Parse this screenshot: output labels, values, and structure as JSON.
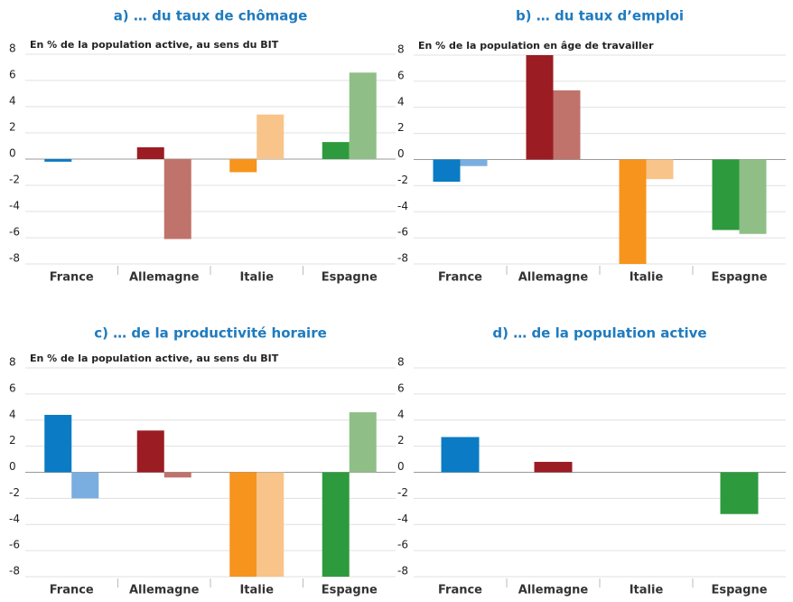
{
  "chart_data": [
    {
      "type": "bar",
      "title": "a) … du taux de chômage",
      "subtitle": "En % de la population active, au sens du BIT",
      "categories": [
        "France",
        "Allemagne",
        "Italie",
        "Espagne"
      ],
      "series": [
        {
          "colors": [
            "#0a7bc4",
            "#9b1c23",
            "#f7941d",
            "#2e9a3e"
          ],
          "values": [
            -0.2,
            0.9,
            -1.0,
            1.3
          ]
        },
        {
          "colors": [
            "#7aaee0",
            "#c0736b",
            "#f8c48a",
            "#8fbf87"
          ],
          "values": [
            null,
            -6.1,
            3.4,
            6.6
          ]
        }
      ],
      "ylim": [
        -8,
        8
      ],
      "yticks": [
        -8,
        -6,
        -4,
        -2,
        0,
        2,
        4,
        6,
        8
      ],
      "grid": true
    },
    {
      "type": "bar",
      "title": "b) … du taux d’emploi",
      "subtitle": "En % de la population en âge de travailler",
      "categories": [
        "France",
        "Allemagne",
        "Italie",
        "Espagne"
      ],
      "series": [
        {
          "colors": [
            "#0a7bc4",
            "#9b1c23",
            "#f7941d",
            "#2e9a3e"
          ],
          "values": [
            -1.7,
            8,
            -8,
            -5.4
          ]
        },
        {
          "colors": [
            "#7aaee0",
            "#c0736b",
            "#f8c48a",
            "#8fbf87"
          ],
          "values": [
            -0.5,
            5.3,
            -1.5,
            -5.7
          ]
        }
      ],
      "ylim": [
        -8,
        8
      ],
      "yticks": [
        -8,
        -6,
        -4,
        -2,
        0,
        2,
        4,
        6,
        8
      ],
      "grid": true
    },
    {
      "type": "bar",
      "title": "c) … de la productivité horaire",
      "subtitle": "En % de la population active, au sens du BIT",
      "categories": [
        "France",
        "Allemagne",
        "Italie",
        "Espagne"
      ],
      "series": [
        {
          "colors": [
            "#0a7bc4",
            "#9b1c23",
            "#f7941d",
            "#2e9a3e"
          ],
          "values": [
            4.4,
            3.2,
            -8,
            -8
          ]
        },
        {
          "colors": [
            "#7aaee0",
            "#c0736b",
            "#f8c48a",
            "#8fbf87"
          ],
          "values": [
            -2.0,
            -0.4,
            -8,
            4.6
          ]
        }
      ],
      "ylim": [
        -8,
        8
      ],
      "yticks": [
        -8,
        -6,
        -4,
        -2,
        0,
        2,
        4,
        6,
        8
      ],
      "grid": true
    },
    {
      "type": "bar",
      "title": "d) … de la population active",
      "categories": [
        "France",
        "Allemagne",
        "Italie",
        "Espagne"
      ],
      "series": [
        {
          "colors": [
            "#0a7bc4",
            "#9b1c23",
            "#f7941d",
            "#2e9a3e"
          ],
          "values": [
            2.7,
            0.8,
            null,
            -3.2
          ]
        }
      ],
      "ylim": [
        -8,
        8
      ],
      "yticks": [
        -8,
        -6,
        -4,
        -2,
        0,
        2,
        4,
        6,
        8
      ],
      "grid": true
    }
  ]
}
